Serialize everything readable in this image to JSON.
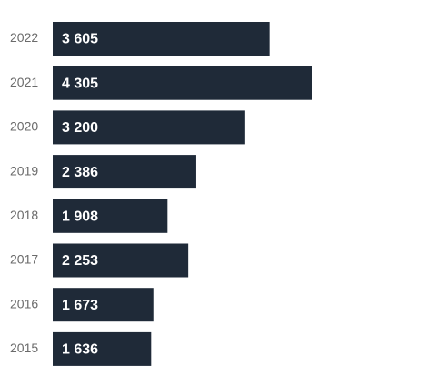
{
  "chart_data": {
    "type": "bar",
    "orientation": "horizontal",
    "color": "#1f2a38",
    "categories": [
      "2022",
      "2021",
      "2020",
      "2019",
      "2018",
      "2017",
      "2016",
      "2015"
    ],
    "values": [
      3605,
      4305,
      3200,
      2386,
      1908,
      2253,
      1673,
      1636
    ],
    "value_labels": [
      "3 605",
      "4 305",
      "3 200",
      "2 386",
      "1 908",
      "2 253",
      "1 673",
      "1 636"
    ]
  }
}
